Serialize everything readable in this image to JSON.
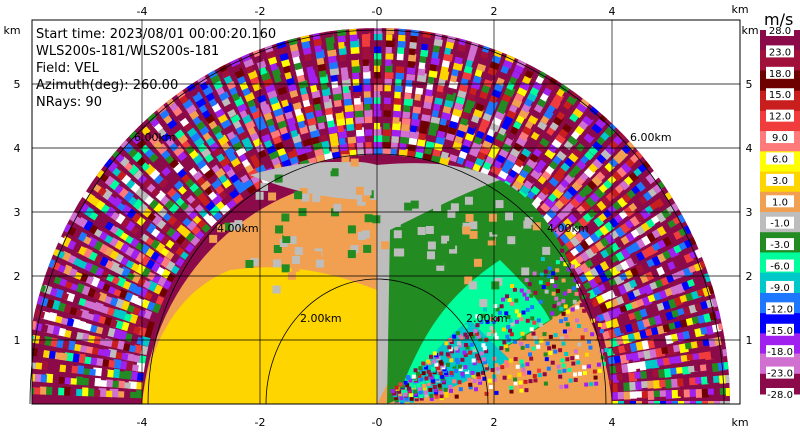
{
  "info": {
    "start_time": "Start time: 2023/08/01 00:00:20.160",
    "instrument": "WLS200s-181/WLS200s-181",
    "field": "Field: VEL",
    "azimuth": "Azimuth(deg): 260.00",
    "nrays": "NRays: 90"
  },
  "colorbar": {
    "title": "m/s",
    "labels": [
      "28.0",
      "23.0",
      "18.0",
      "15.0",
      "12.0",
      "9.0",
      "6.0",
      "3.0",
      "1.0",
      "-1.0",
      "-3.0",
      "-6.0",
      "-9.0",
      "-12.0",
      "-15.0",
      "-18.0",
      "-23.0",
      "-28.0"
    ],
    "colors": [
      "#8b0a4a",
      "#a0103b",
      "#6e0000",
      "#c81e1e",
      "#f03c3c",
      "#ff7a7a",
      "#ffff00",
      "#ffd500",
      "#f0a050",
      "#bdbdbd",
      "#228b22",
      "#00ff9c",
      "#00c8c8",
      "#1e78ff",
      "#0000ff",
      "#a020f0",
      "#d070d0",
      "#8b0a4a"
    ]
  },
  "axes": {
    "x_unit": "km",
    "y_unit": "km",
    "x_ticks": [
      "-4",
      "-2",
      "-0",
      "2",
      "4"
    ],
    "y_ticks": [
      "1",
      "2",
      "3",
      "4",
      "5"
    ]
  },
  "rings": [
    "2.00km",
    "2.00km",
    "4.00km",
    "4.00km",
    "6.00km",
    "6.00km"
  ],
  "chart_data": {
    "type": "heatmap",
    "title": "",
    "field": "VEL",
    "unit": "m/s",
    "xlim": [
      -6.0,
      6.0
    ],
    "ylim": [
      0,
      5.9
    ],
    "range_rings_km": [
      2,
      4,
      6
    ],
    "color_scale": [
      -28,
      -23,
      -18,
      -15,
      -12,
      -9,
      -6,
      -3,
      -1,
      1,
      3,
      6,
      9,
      12,
      15,
      18,
      23,
      28
    ]
  }
}
